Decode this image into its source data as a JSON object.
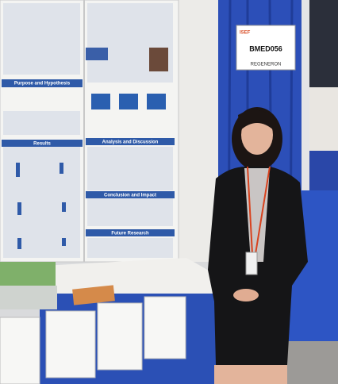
{
  "sign": {
    "logo": "ISEF",
    "code": "BMED056",
    "sponsor": "REGENERON"
  },
  "poster": {
    "headings": [
      "Purpose and Hypothesis",
      "Results",
      "Analysis and Discussion",
      "Conclusion and Impact",
      "Future Research"
    ]
  }
}
